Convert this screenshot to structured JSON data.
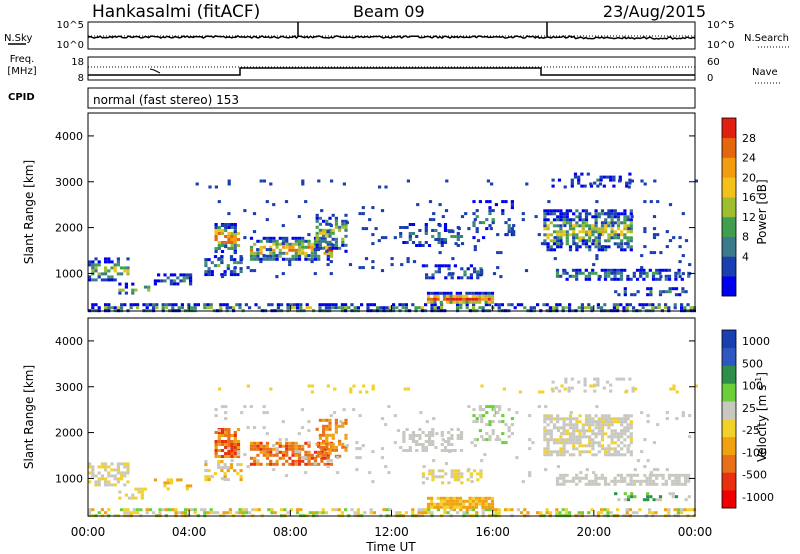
{
  "header": {
    "station": "Hankasalmi (fitACF)",
    "beam": "Beam 09",
    "date": "23/Aug/2015"
  },
  "noise_panel": {
    "left_label": "N.Sky",
    "right_label": "N.Search",
    "left_ticks": [
      "10^5",
      "10^0"
    ],
    "right_ticks": [
      "10^5",
      "10^0"
    ]
  },
  "freq_panel": {
    "left_label_1": "Freq.",
    "left_label_2": "[MHz]",
    "right_label": "Nave",
    "left_ticks": [
      "18",
      "8"
    ],
    "right_ticks": [
      "60",
      "0"
    ]
  },
  "cpid_panel": {
    "label": "CPID",
    "text": "normal (fast stereo) 153"
  },
  "colors": {
    "power": [
      "#0000ee",
      "#1a3fb0",
      "#3a7a8a",
      "#3f9f4f",
      "#9fbe2f",
      "#f2c21a",
      "#f39c12",
      "#e4670f",
      "#e02010"
    ],
    "velocity": [
      "#1a3fb0",
      "#2f57c0",
      "#2f8f4a",
      "#6ccf3a",
      "#c8c8c0",
      "#f2d22a",
      "#f0a010",
      "#e8701a",
      "#e83010",
      "#ee0000"
    ]
  },
  "chart_data": [
    {
      "type": "heatmap",
      "name": "power",
      "ylabel": "Slant Range [km]",
      "yticks": [
        "4000",
        "3000",
        "2000",
        "1000"
      ],
      "ylim": [
        180,
        4500
      ],
      "xlim_hours": [
        0,
        24
      ],
      "colorbar": {
        "label": "Power [dB]",
        "ticks": [
          "28",
          "24",
          "20",
          "16",
          "12",
          "8",
          "4"
        ],
        "range": [
          0,
          32
        ]
      }
    },
    {
      "type": "heatmap",
      "name": "velocity",
      "ylabel": "Slant Range [km]",
      "yticks": [
        "4000",
        "3000",
        "2000",
        "1000"
      ],
      "ylim": [
        180,
        4500
      ],
      "xlabel": "Time UT",
      "xticks": [
        "00:00",
        "04:00",
        "08:00",
        "12:00",
        "16:00",
        "20:00",
        "00:00"
      ],
      "colorbar": {
        "label": "Velocity [m s",
        "label_sup": "-1",
        "label_end": "]",
        "ticks": [
          "1000",
          "500",
          "100",
          "25",
          "-25",
          "-100",
          "-500",
          "-1000"
        ]
      }
    }
  ]
}
